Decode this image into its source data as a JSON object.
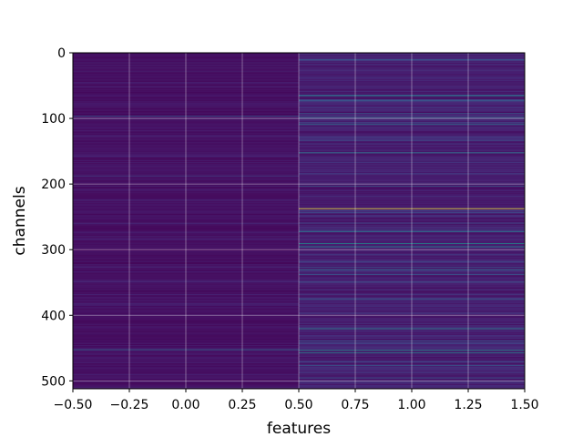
{
  "chart_data": {
    "type": "heatmap",
    "title": "",
    "xlabel": "features",
    "ylabel": "channels",
    "xlim": [
      -0.5,
      1.5
    ],
    "ylim": [
      512,
      0
    ],
    "y_inverted": true,
    "n_rows": 512,
    "n_cols": 2,
    "colormap": "viridis",
    "grid": true,
    "x_ticks": [
      -0.5,
      -0.25,
      0.0,
      0.25,
      0.5,
      0.75,
      1.0,
      1.25,
      1.5
    ],
    "x_tick_labels": [
      "−0.50",
      "−0.25",
      "0.00",
      "0.25",
      "0.50",
      "0.75",
      "1.00",
      "1.25",
      "1.50"
    ],
    "y_ticks": [
      0,
      100,
      200,
      300,
      400,
      500
    ],
    "y_tick_labels": [
      "0",
      "100",
      "200",
      "300",
      "400",
      "500"
    ],
    "columns": [
      {
        "feature": 0,
        "baseline_level": 0.06,
        "highlighted_rows": [
          {
            "row": 96,
            "level": 0.35
          },
          {
            "row": 187,
            "level": 0.25
          },
          {
            "row": 452,
            "level": 0.45
          }
        ]
      },
      {
        "feature": 1,
        "baseline_level": 0.12,
        "highlighted_rows": [
          {
            "row": 65,
            "level": 0.55
          },
          {
            "row": 98,
            "level": 0.45
          },
          {
            "row": 108,
            "level": 0.5
          },
          {
            "row": 152,
            "level": 0.55
          },
          {
            "row": 237,
            "level": 1.0
          },
          {
            "row": 272,
            "level": 0.5
          },
          {
            "row": 290,
            "level": 0.6
          },
          {
            "row": 295,
            "level": 0.55
          },
          {
            "row": 330,
            "level": 0.5
          },
          {
            "row": 375,
            "level": 0.4
          },
          {
            "row": 420,
            "level": 0.6
          },
          {
            "row": 453,
            "level": 0.65
          },
          {
            "row": 457,
            "level": 0.55
          }
        ]
      }
    ]
  }
}
